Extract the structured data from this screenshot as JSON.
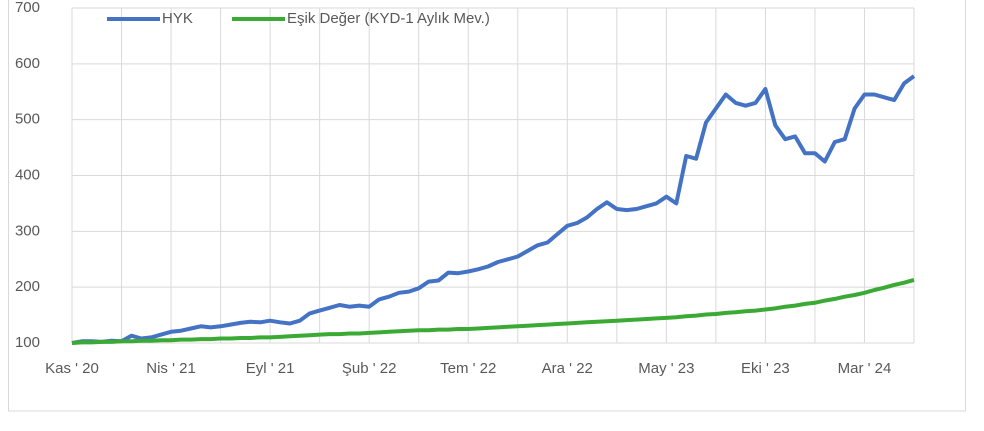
{
  "chart_data": {
    "type": "line",
    "categories": [
      "Kas ' 20",
      null,
      null,
      null,
      null,
      null,
      null,
      null,
      null,
      null,
      "Nis ' 21",
      null,
      null,
      null,
      null,
      null,
      null,
      null,
      null,
      null,
      "Eyl ' 21",
      null,
      null,
      null,
      null,
      null,
      null,
      null,
      null,
      null,
      "Şub ' 22",
      null,
      null,
      null,
      null,
      null,
      null,
      null,
      null,
      null,
      "Tem ' 22",
      null,
      null,
      null,
      null,
      null,
      null,
      null,
      null,
      null,
      "Ara ' 22",
      null,
      null,
      null,
      null,
      null,
      null,
      null,
      null,
      null,
      "May ' 23",
      null,
      null,
      null,
      null,
      null,
      null,
      null,
      null,
      null,
      "Eki ' 23",
      null,
      null,
      null,
      null,
      null,
      null,
      null,
      null,
      null,
      "Mar ' 24",
      null,
      null,
      null,
      null,
      null
    ],
    "series": [
      {
        "name": "HYK",
        "color": "#4472c4",
        "values": [
          100,
          103,
          103,
          102,
          104,
          103,
          113,
          108,
          110,
          115,
          120,
          122,
          126,
          130,
          128,
          130,
          133,
          136,
          138,
          137,
          140,
          137,
          135,
          140,
          153,
          158,
          163,
          168,
          165,
          167,
          165,
          178,
          183,
          190,
          192,
          198,
          210,
          212,
          226,
          225,
          228,
          232,
          237,
          245,
          250,
          255,
          265,
          275,
          280,
          295,
          310,
          315,
          325,
          340,
          352,
          340,
          338,
          340,
          345,
          350,
          362,
          350,
          435,
          430,
          495,
          520,
          545,
          530,
          525,
          530,
          555,
          490,
          465,
          470,
          440,
          440,
          425,
          460,
          465,
          520,
          545,
          545,
          540,
          535,
          565,
          578
        ]
      },
      {
        "name": "Eşik Değer (KYD-1 Aylık Mev.)",
        "color": "#3aaa35",
        "values": [
          100,
          101,
          101,
          102,
          102,
          103,
          103,
          104,
          104,
          105,
          105,
          106,
          106,
          107,
          107,
          108,
          108,
          109,
          109,
          110,
          110,
          111,
          112,
          113,
          114,
          115,
          116,
          116,
          117,
          117,
          118,
          119,
          120,
          121,
          122,
          123,
          123,
          124,
          124,
          125,
          125,
          126,
          127,
          128,
          129,
          130,
          131,
          132,
          133,
          134,
          135,
          136,
          137,
          138,
          139,
          140,
          141,
          142,
          143,
          144,
          145,
          146,
          148,
          149,
          151,
          152,
          154,
          155,
          157,
          158,
          160,
          162,
          165,
          167,
          170,
          172,
          176,
          179,
          183,
          186,
          190,
          195,
          199,
          204,
          208,
          213
        ]
      }
    ],
    "ylim": [
      100,
      700
    ],
    "yticks": [
      100,
      200,
      300,
      400,
      500,
      600,
      700
    ],
    "grid": true,
    "legend": "top"
  }
}
